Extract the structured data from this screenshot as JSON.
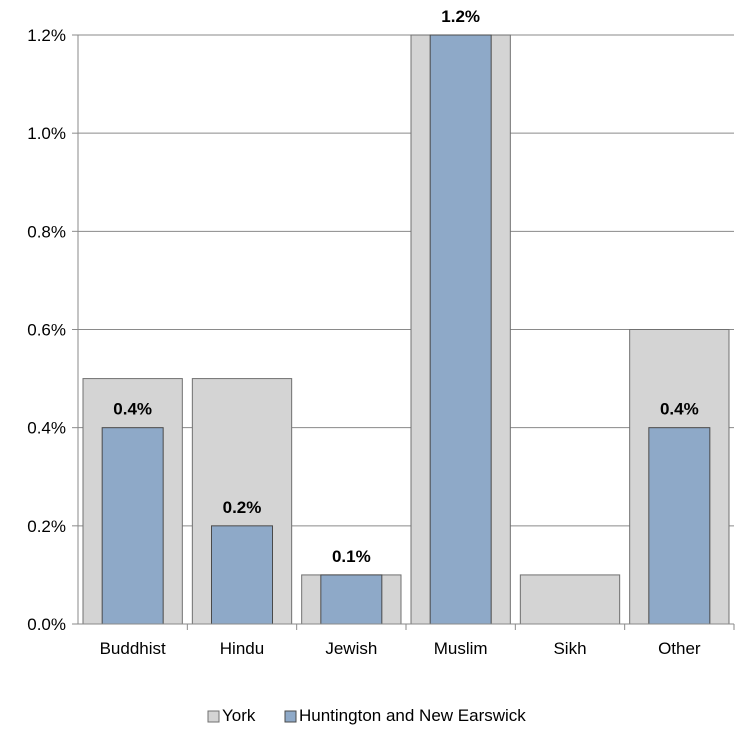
{
  "chart_data": {
    "type": "bar",
    "title": "",
    "xlabel": "",
    "ylabel": "",
    "categories": [
      "Buddhist",
      "Hindu",
      "Jewish",
      "Muslim",
      "Sikh",
      "Other"
    ],
    "series": [
      {
        "name": "York",
        "values": [
          0.5,
          0.5,
          0.1,
          1.2,
          0.1,
          0.6
        ],
        "color": "#d4d4d4"
      },
      {
        "name": "Huntington and New Earswick",
        "values": [
          0.4,
          0.2,
          0.1,
          1.2,
          0.0,
          0.4
        ],
        "color": "#8ea9c8"
      }
    ],
    "data_labels": [
      "0.4%",
      "0.2%",
      "0.1%",
      "1.2%",
      "",
      "0.4%"
    ],
    "ylim": [
      0,
      1.2
    ],
    "yticks": [
      "0.0%",
      "0.2%",
      "0.4%",
      "0.6%",
      "0.8%",
      "1.0%",
      "1.2%"
    ],
    "grid": true,
    "legend_position": "bottom"
  }
}
